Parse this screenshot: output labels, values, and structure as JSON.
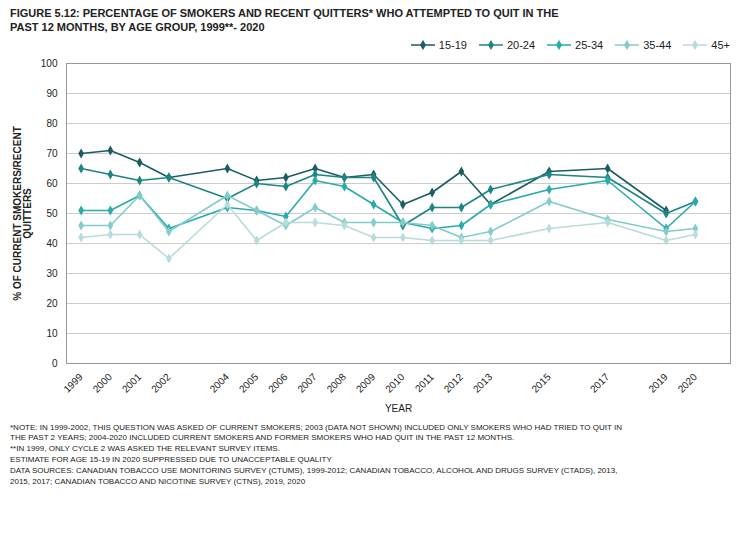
{
  "chart_data": {
    "type": "line",
    "title": "FIGURE 5.12: PERCENTAGE OF SMOKERS AND RECENT QUITTERS* WHO ATTEMPTED TO QUIT IN THE\nPAST 12 MONTHS, BY AGE GROUP, 1999**- 2020",
    "xlabel": "YEAR",
    "ylabel": "% OF CURRENT SMOKERS/RECENT\nQUITTERS",
    "x": [
      1999,
      2000,
      2001,
      2002,
      2004,
      2005,
      2006,
      2007,
      2008,
      2009,
      2010,
      2011,
      2012,
      2013,
      2015,
      2017,
      2019,
      2020
    ],
    "series": [
      {
        "name": "15-19",
        "color": "#1b5e62",
        "values": [
          70,
          71,
          67,
          62,
          65,
          61,
          62,
          65,
          62,
          63,
          53,
          57,
          64,
          53,
          64,
          65,
          51,
          null
        ]
      },
      {
        "name": "20-24",
        "color": "#1e8585",
        "values": [
          65,
          63,
          61,
          62,
          55,
          60,
          59,
          63,
          62,
          62,
          46,
          52,
          52,
          58,
          63,
          62,
          50,
          54
        ]
      },
      {
        "name": "25-34",
        "color": "#2aabab",
        "values": [
          51,
          51,
          56,
          45,
          52,
          51,
          49,
          61,
          59,
          53,
          47,
          45,
          46,
          53,
          58,
          61,
          45,
          54
        ]
      },
      {
        "name": "35-44",
        "color": "#82cccc",
        "values": [
          46,
          46,
          56,
          44,
          56,
          51,
          46,
          52,
          47,
          47,
          47,
          46,
          42,
          44,
          54,
          48,
          44,
          45
        ]
      },
      {
        "name": "45+",
        "color": "#b8dcdc",
        "values": [
          42,
          43,
          43,
          35,
          53,
          41,
          47,
          47,
          46,
          42,
          42,
          41,
          41,
          41,
          45,
          47,
          41,
          43
        ]
      }
    ],
    "marker": "diamond",
    "xlim": [
      1998.5,
      2021.2
    ],
    "xticks": [
      1999,
      2000,
      2001,
      2002,
      2004,
      2005,
      2006,
      2007,
      2008,
      2009,
      2010,
      2011,
      2012,
      2013,
      2015,
      2017,
      2019,
      2020
    ],
    "ylim": [
      0,
      100
    ],
    "yticks": [
      0,
      10,
      20,
      30,
      40,
      50,
      60,
      70,
      80,
      90,
      100
    ],
    "grid": "y",
    "legend": "upper right",
    "caption": "*NOTE: IN 1999-2002, THIS QUESTION WAS ASKED OF CURRENT SMOKERS; 2003 (DATA NOT SHOWN) INCLUDED ONLY SMOKERS WHO HAD TRIED TO QUIT IN\nTHE PAST 2 YEARS; 2004-2020 INCLUDED CURRENT SMOKERS AND FORMER SMOKERS WHO HAD QUIT IN THE PAST 12 MONTHS.\n**IN 1999, ONLY CYCLE 2 WAS ASKED THE RELEVANT SURVEY ITEMS.\nESTIMATE FOR AGE 15-19 IN 2020 SUPPRESSED DUE TO UNACCEPTABLE QUALITY\nDATA SOURCES: CANADIAN TOBACCO USE MONITORING SURVEY (CTUMS), 1999-2012; CANADIAN TOBACCO, ALCOHOL AND DRUGS SURVEY (CTADS), 2013,\n2015, 2017; CANADIAN TOBACCO AND NICOTINE SURVEY (CTNS), 2019, 2020"
  }
}
